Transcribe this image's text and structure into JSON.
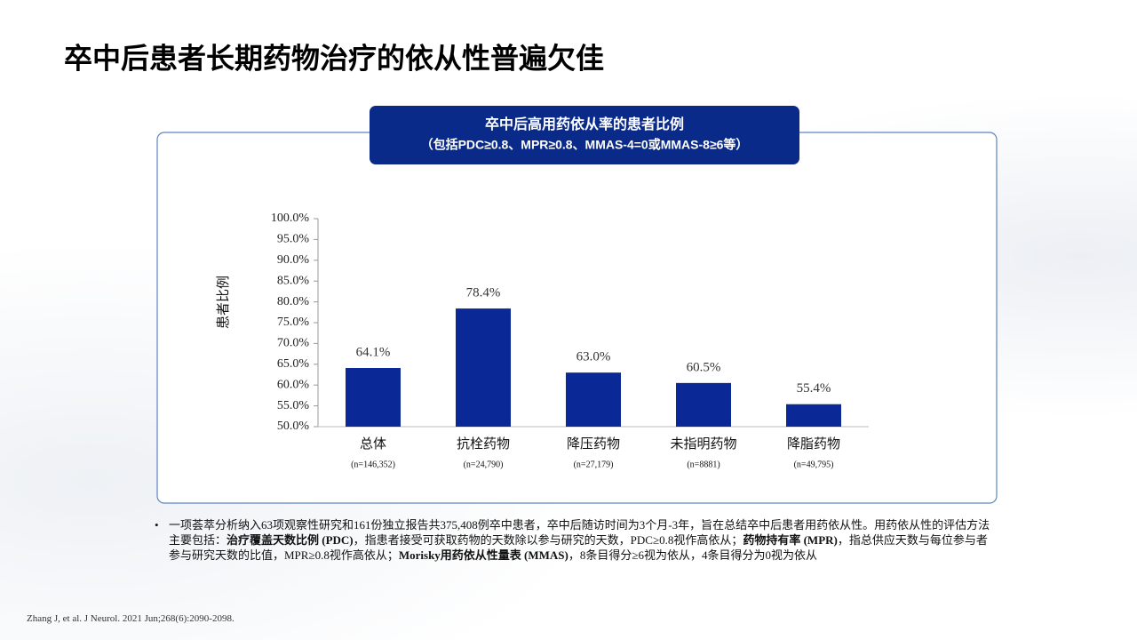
{
  "title": "卒中后患者长期药物治疗的依从性普遍欠佳",
  "chart_data": {
    "type": "bar",
    "title": "卒中后高用药依从率的患者比例",
    "subtitle": "（包括PDC≥0.8、MPR≥0.8、MMAS-4=0或MMAS-8≥6等）",
    "y_label": "患者比例",
    "categories": [
      "总体",
      "抗栓药物",
      "降压药物",
      "未指明药物",
      "降脂药物"
    ],
    "category_notes": [
      "(n=146,352)",
      "(n=24,790)",
      "(n=27,179)",
      "(n=8881)",
      "(n=49,795)"
    ],
    "values": [
      64.1,
      78.4,
      63.0,
      60.5,
      55.4
    ],
    "value_labels": [
      "64.1%",
      "78.4%",
      "63.0%",
      "60.5%",
      "55.4%"
    ],
    "color": "#0a2896",
    "ylim": [
      50,
      100
    ],
    "yticks": [
      {
        "value": 50,
        "label": "50.0%"
      },
      {
        "value": 55,
        "label": "55.0%"
      },
      {
        "value": 60,
        "label": "60.0%"
      },
      {
        "value": 65,
        "label": "65.0%"
      },
      {
        "value": 70,
        "label": "70.0%"
      },
      {
        "value": 75,
        "label": "75.0%"
      },
      {
        "value": 80,
        "label": "80.0%"
      },
      {
        "value": 85,
        "label": "85.0%"
      },
      {
        "value": 90,
        "label": "90.0%"
      },
      {
        "value": 95,
        "label": "95.0%"
      },
      {
        "value": 100,
        "label": "100.0%"
      }
    ],
    "grid": false
  },
  "bullet": [
    {
      "text": "一项荟萃分析纳入63项观察性研究和161份独立报告共375,408例卒中患者，卒中后随访时间为3个月-3年，旨在总结卒中后患者用药依从性。用药依从性的评估方法主要包括：",
      "bold": false
    },
    {
      "text": "治疗覆盖天数比例 (PDC)",
      "bold": true
    },
    {
      "text": "，指患者接受可获取药物的天数除以参与研究的天数，PDC≥0.8视作高依从；",
      "bold": false
    },
    {
      "text": "药物持有率 (MPR)",
      "bold": true
    },
    {
      "text": "，指总供应天数与每位参与者参与研究天数的比值，MPR≥0.8视作高依从；",
      "bold": false
    },
    {
      "text": "Morisky用药依从性量表 (MMAS)",
      "bold": true
    },
    {
      "text": "，8条目得分≥6视为依从，4条目得分为0视为依从",
      "bold": false
    }
  ],
  "citation": "Zhang J, et al. J Neurol. 2021 Jun;268(6):2090-2098."
}
